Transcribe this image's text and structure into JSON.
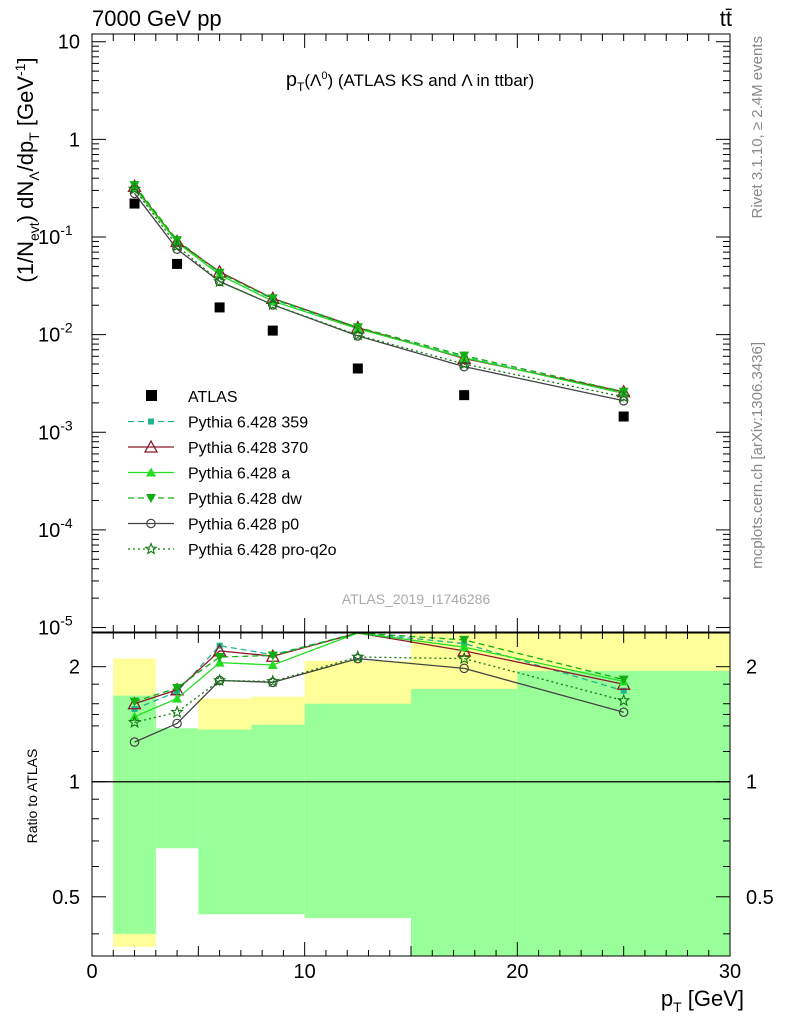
{
  "header": {
    "left": "7000 GeV pp",
    "right": "tt̄"
  },
  "side_text": {
    "top": "Rivet 3.1.10, ≥ 2.4M events",
    "bottom": "mcplots.cern.ch [arXiv:1306.3436]"
  },
  "watermark": "ATLAS_2019_I1746286",
  "chart_data": [
    {
      "type": "scatter",
      "panel": "main",
      "title": "p_T(Λ^0) (ATLAS KS and Λ in ttbar)",
      "ylabel": "(1/N_evt) dN_Λ/dp_T [GeV^-1]",
      "xlabel": "",
      "log_y": true,
      "xlim": [
        0,
        30
      ],
      "ylim": [
        9e-06,
        12
      ],
      "y_tick_labels": [
        "10",
        "1",
        "10^-1",
        "10^-2",
        "10^-3",
        "10^-4",
        "10^-5"
      ],
      "x": [
        2,
        4,
        6,
        8.5,
        12.5,
        17.5,
        25
      ],
      "series": [
        {
          "name": "ATLAS",
          "style": "data",
          "color": "#000000",
          "values": [
            0.22,
            0.053,
            0.019,
            0.011,
            0.0045,
            0.0024,
            0.00145
          ]
        },
        {
          "name": "Pythia 6.428 359",
          "style": "dashed",
          "marker": "square",
          "color": "#1fb58f",
          "values": [
            0.33,
            0.091,
            0.043,
            0.023,
            0.0116,
            0.0059,
            0.0025
          ]
        },
        {
          "name": "Pythia 6.428 370",
          "style": "solid",
          "marker": "triangle-open",
          "color": "#8b1a2b",
          "values": [
            0.33,
            0.09,
            0.044,
            0.0235,
            0.0118,
            0.0057,
            0.0026
          ]
        },
        {
          "name": "Pythia 6.428 a",
          "style": "solid",
          "marker": "triangle",
          "color": "#22dd22",
          "values": [
            0.32,
            0.088,
            0.041,
            0.022,
            0.0115,
            0.0058,
            0.0025
          ]
        },
        {
          "name": "Pythia 6.428 dw",
          "style": "dashed",
          "marker": "triangle-down",
          "color": "#10b010",
          "values": [
            0.34,
            0.093,
            0.043,
            0.0235,
            0.0119,
            0.0061,
            0.0026
          ]
        },
        {
          "name": "Pythia 6.428 p0",
          "style": "solid",
          "marker": "circle-open",
          "color": "#444444",
          "values": [
            0.28,
            0.075,
            0.035,
            0.0202,
            0.0097,
            0.0047,
            0.0021
          ]
        },
        {
          "name": "Pythia 6.428 pro-q2o",
          "style": "dotted",
          "marker": "star-open",
          "color": "#117a11",
          "values": [
            0.31,
            0.081,
            0.035,
            0.0203,
            0.0099,
            0.005,
            0.0023
          ]
        }
      ]
    },
    {
      "type": "line",
      "panel": "ratio",
      "ylabel": "Ratio to ATLAS",
      "xlabel": "p_T [GeV]",
      "log_y": true,
      "xlim": [
        0,
        30
      ],
      "ylim": [
        0.35,
        2.45
      ],
      "y_ticks": [
        0.5,
        1,
        2
      ],
      "y_tick_labels": [
        "0.5",
        "1",
        "2"
      ],
      "x_ticks": [
        0,
        10,
        20,
        30
      ],
      "x_tick_labels": [
        "0",
        "10",
        "20",
        "30"
      ],
      "x": [
        2,
        4,
        6,
        8.5,
        12.5,
        17.5,
        25
      ],
      "bins": [
        [
          1,
          3
        ],
        [
          3,
          5
        ],
        [
          5,
          7.5
        ],
        [
          7.5,
          10
        ],
        [
          10,
          15
        ],
        [
          15,
          20
        ],
        [
          20,
          30
        ]
      ],
      "band_stat": [
        [
          0.4,
          1.68
        ],
        [
          0.67,
          1.38
        ],
        [
          0.45,
          1.37
        ],
        [
          0.45,
          1.41
        ],
        [
          0.44,
          1.6
        ],
        [
          0.35,
          1.75
        ],
        [
          0.35,
          1.95
        ]
      ],
      "band_total": [
        [
          0.37,
          2.1
        ],
        [
          0.86,
          1.22
        ],
        [
          0.75,
          1.65
        ],
        [
          0.74,
          1.67
        ],
        [
          0.44,
          2.07
        ],
        [
          0.35,
          2.45
        ],
        [
          0.35,
          2.45
        ]
      ],
      "reference": 1,
      "series": [
        {
          "name": "Pythia 6.428 359",
          "style": "dashed",
          "marker": "square",
          "color": "#1fb58f",
          "values": [
            1.55,
            1.72,
            2.27,
            2.15,
            2.45,
            2.3,
            1.73
          ]
        },
        {
          "name": "Pythia 6.428 370",
          "style": "solid",
          "marker": "triangle-open",
          "color": "#8b1a2b",
          "values": [
            1.6,
            1.74,
            2.2,
            2.13,
            2.45,
            2.2,
            1.8
          ]
        },
        {
          "name": "Pythia 6.428 a",
          "style": "solid",
          "marker": "triangle",
          "color": "#22dd22",
          "values": [
            1.48,
            1.65,
            2.05,
            2.02,
            2.45,
            2.25,
            1.83
          ]
        },
        {
          "name": "Pythia 6.428 dw",
          "style": "dashed",
          "marker": "triangle-down",
          "color": "#10b010",
          "values": [
            1.62,
            1.76,
            2.12,
            2.14,
            2.45,
            2.35,
            1.85
          ]
        },
        {
          "name": "Pythia 6.428 p0",
          "style": "solid",
          "marker": "circle-open",
          "color": "#444444",
          "values": [
            1.27,
            1.42,
            1.84,
            1.82,
            2.1,
            1.98,
            1.52
          ]
        },
        {
          "name": "Pythia 6.428 pro-q2o",
          "style": "dotted",
          "marker": "star-open",
          "color": "#117a11",
          "values": [
            1.43,
            1.52,
            1.84,
            1.83,
            2.12,
            2.1,
            1.63
          ]
        }
      ]
    }
  ]
}
